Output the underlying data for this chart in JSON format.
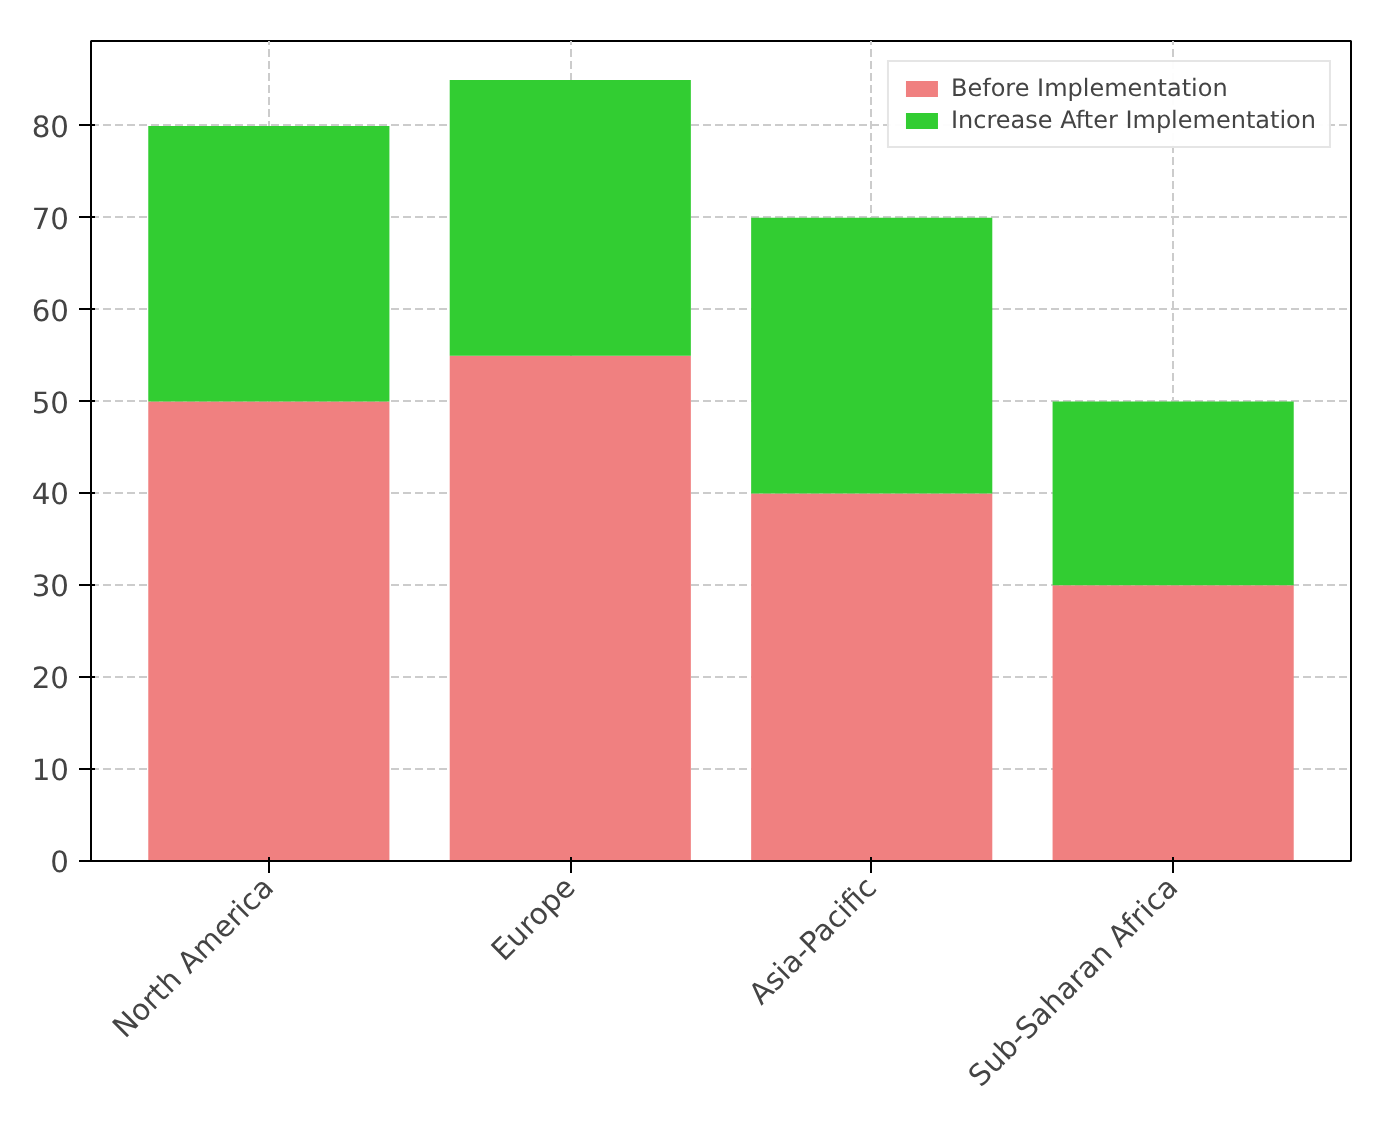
{
  "chart_data": {
    "type": "bar",
    "stacked": true,
    "categories": [
      "North America",
      "Europe",
      "Asia-Pacific",
      "Sub-Saharan Africa"
    ],
    "series": [
      {
        "name": "Before Implementation",
        "color": "#f08080",
        "values": [
          50,
          55,
          40,
          30
        ]
      },
      {
        "name": "Increase After Implementation",
        "color": "#32cd32",
        "values": [
          30,
          30,
          30,
          20
        ]
      }
    ],
    "ylim": [
      0,
      89.25
    ],
    "yticks": [
      0,
      10,
      20,
      30,
      40,
      50,
      60,
      70,
      80
    ],
    "grid": true,
    "legend": "top right"
  }
}
